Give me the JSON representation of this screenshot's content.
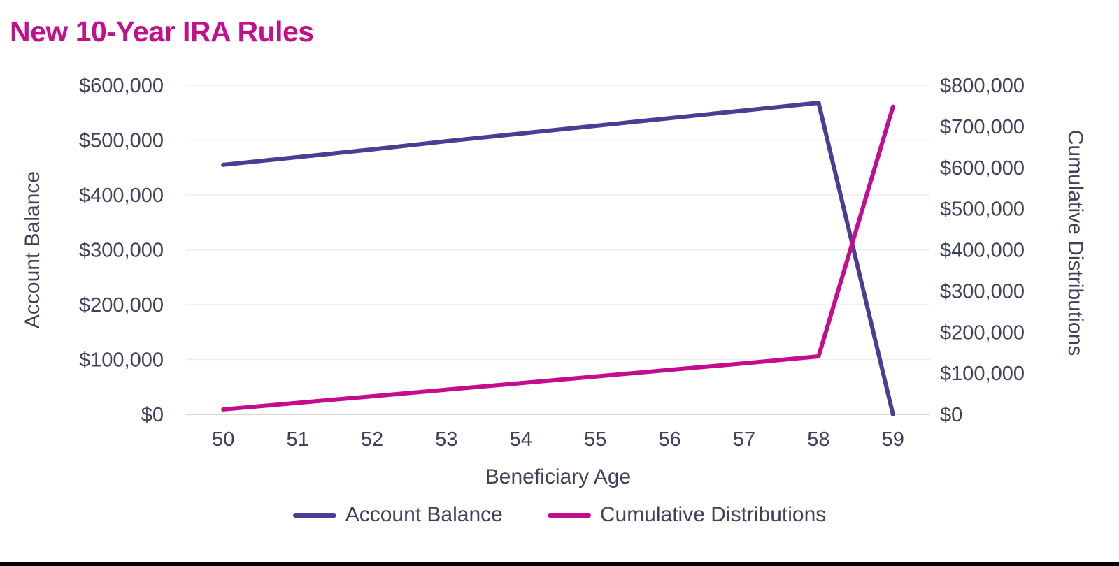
{
  "page": {
    "background": "#FFFFFF",
    "bottom_rule_color": "#000000"
  },
  "chart_data": {
    "type": "line",
    "title": "New 10-Year IRA Rules",
    "title_color": "#C2108C",
    "text_color": "#3F4158",
    "grid_color": "#EDEDED",
    "axis_line_color": "#D6D6D6",
    "grid": true,
    "legend_position": "bottom",
    "xlabel": "Beneficiary Age",
    "x": [
      "50",
      "51",
      "52",
      "53",
      "54",
      "55",
      "56",
      "57",
      "58",
      "59"
    ],
    "left_axis": {
      "label": "Account Balance",
      "min": 0,
      "max": 600000,
      "step": 100000,
      "ticks": [
        "$0",
        "$100,000",
        "$200,000",
        "$300,000",
        "$400,000",
        "$500,000",
        "$600,000"
      ]
    },
    "right_axis": {
      "label": "Cumulative Distributions",
      "min": 0,
      "max": 800000,
      "step": 100000,
      "ticks": [
        "$0",
        "$100,000",
        "$200,000",
        "$300,000",
        "$400,000",
        "$500,000",
        "$600,000",
        "$700,000",
        "$800,000"
      ]
    },
    "series": [
      {
        "name": "Account Balance",
        "axis": "left",
        "color": "#4A3E94",
        "values": [
          455000,
          469000,
          483000,
          498000,
          512000,
          526000,
          540000,
          554000,
          568000,
          0
        ]
      },
      {
        "name": "Cumulative Distributions",
        "axis": "right",
        "color": "#C40D8E",
        "values": [
          12000,
          28000,
          44000,
          60000,
          76000,
          92000,
          108000,
          124000,
          141000,
          748000
        ]
      }
    ]
  }
}
